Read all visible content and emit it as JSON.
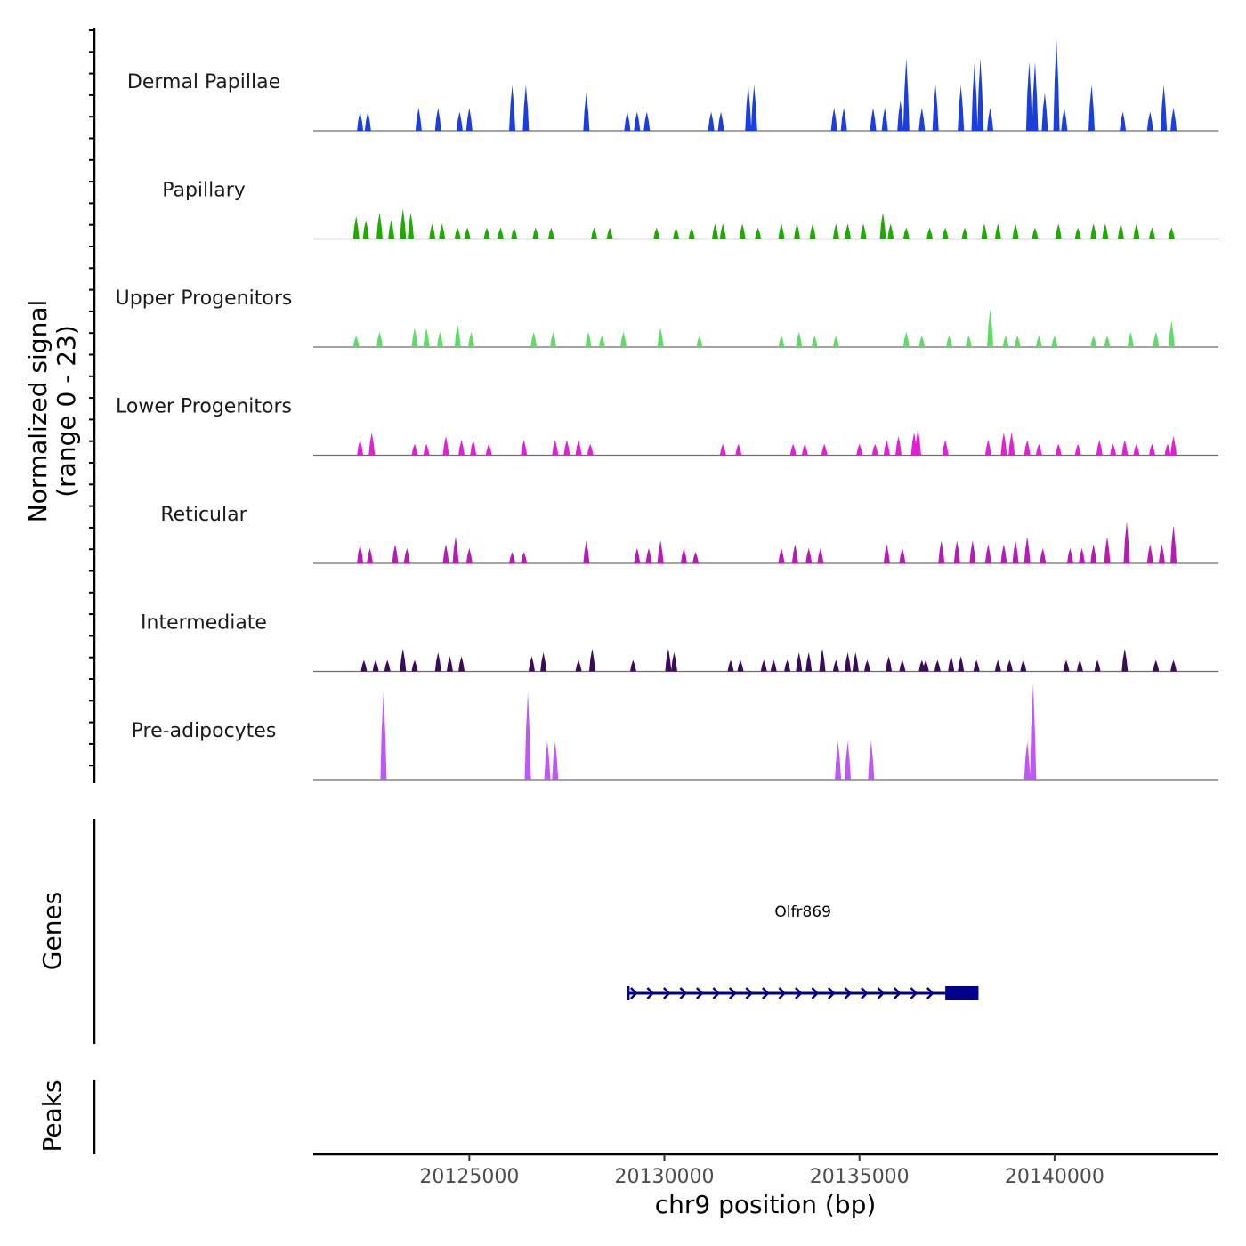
{
  "chart_data": {
    "type": "coverage",
    "y_axis_title": "Normalized signal",
    "y_axis_subtitle": "(range 0 - 23)",
    "y_range": [
      0,
      23
    ],
    "x_axis_title": "chr9 position (bp)",
    "x_ticks": [
      20125000,
      20130000,
      20135000,
      20140000
    ],
    "x_tick_labels": [
      "20125000",
      "20130000",
      "20135000",
      "20140000"
    ],
    "x_range": [
      20121000,
      20144200
    ],
    "tracks": [
      {
        "name": "Dermal Papillae",
        "color": "#1a3fe0",
        "peaks": [
          [
            20122200,
            5
          ],
          [
            20122400,
            5
          ],
          [
            20123700,
            6
          ],
          [
            20124200,
            6
          ],
          [
            20124750,
            5
          ],
          [
            20125000,
            6
          ],
          [
            20126100,
            12
          ],
          [
            20126450,
            12
          ],
          [
            20128000,
            10
          ],
          [
            20129050,
            5
          ],
          [
            20129300,
            5
          ],
          [
            20129550,
            5
          ],
          [
            20131200,
            5
          ],
          [
            20131450,
            5
          ],
          [
            20132150,
            12
          ],
          [
            20132300,
            12
          ],
          [
            20134350,
            6
          ],
          [
            20134600,
            6
          ],
          [
            20135350,
            6
          ],
          [
            20135650,
            6
          ],
          [
            20136050,
            8
          ],
          [
            20136200,
            19
          ],
          [
            20136600,
            6
          ],
          [
            20136950,
            12
          ],
          [
            20137600,
            12
          ],
          [
            20137950,
            18
          ],
          [
            20138100,
            19
          ],
          [
            20138350,
            6
          ],
          [
            20139350,
            18
          ],
          [
            20139500,
            18
          ],
          [
            20139750,
            10
          ],
          [
            20140050,
            24
          ],
          [
            20140250,
            6
          ],
          [
            20140950,
            12
          ],
          [
            20141750,
            5
          ],
          [
            20142450,
            5
          ],
          [
            20142800,
            12
          ],
          [
            20143050,
            6
          ]
        ]
      },
      {
        "name": "Papillary",
        "color": "#1faa00",
        "peaks": [
          [
            20122100,
            6
          ],
          [
            20122350,
            5
          ],
          [
            20122700,
            7
          ],
          [
            20123000,
            5
          ],
          [
            20123300,
            8
          ],
          [
            20123500,
            7
          ],
          [
            20124050,
            4
          ],
          [
            20124300,
            4
          ],
          [
            20124700,
            3
          ],
          [
            20124950,
            3
          ],
          [
            20125450,
            3
          ],
          [
            20125800,
            3
          ],
          [
            20126150,
            3
          ],
          [
            20126700,
            3
          ],
          [
            20127100,
            3
          ],
          [
            20128200,
            3
          ],
          [
            20128600,
            3
          ],
          [
            20129800,
            3
          ],
          [
            20130300,
            3
          ],
          [
            20130700,
            3
          ],
          [
            20131300,
            4
          ],
          [
            20131500,
            4
          ],
          [
            20132000,
            4
          ],
          [
            20132400,
            3
          ],
          [
            20133000,
            4
          ],
          [
            20133400,
            4
          ],
          [
            20133800,
            4
          ],
          [
            20134400,
            4
          ],
          [
            20134700,
            4
          ],
          [
            20135100,
            4
          ],
          [
            20135600,
            7
          ],
          [
            20135800,
            4
          ],
          [
            20136200,
            3
          ],
          [
            20136800,
            3
          ],
          [
            20137200,
            3
          ],
          [
            20137700,
            3
          ],
          [
            20138200,
            4
          ],
          [
            20138550,
            4
          ],
          [
            20139000,
            4
          ],
          [
            20139500,
            3
          ],
          [
            20140100,
            4
          ],
          [
            20140600,
            3
          ],
          [
            20141000,
            4
          ],
          [
            20141300,
            4
          ],
          [
            20141700,
            4
          ],
          [
            20142100,
            4
          ],
          [
            20142500,
            3
          ],
          [
            20143000,
            3
          ]
        ]
      },
      {
        "name": "Upper Progenitors",
        "color": "#5fdc66",
        "peaks": [
          [
            20122100,
            3
          ],
          [
            20122700,
            4
          ],
          [
            20123600,
            5
          ],
          [
            20123900,
            5
          ],
          [
            20124250,
            4
          ],
          [
            20124700,
            6
          ],
          [
            20125050,
            4
          ],
          [
            20126650,
            4
          ],
          [
            20127150,
            4
          ],
          [
            20128050,
            4
          ],
          [
            20128400,
            3
          ],
          [
            20128950,
            4
          ],
          [
            20129900,
            5
          ],
          [
            20130900,
            3
          ],
          [
            20133000,
            3
          ],
          [
            20133450,
            4
          ],
          [
            20133850,
            3
          ],
          [
            20134400,
            3
          ],
          [
            20136200,
            4
          ],
          [
            20136600,
            3
          ],
          [
            20137300,
            3
          ],
          [
            20137800,
            3
          ],
          [
            20138350,
            10
          ],
          [
            20138750,
            3
          ],
          [
            20139050,
            3
          ],
          [
            20139600,
            3
          ],
          [
            20140000,
            3
          ],
          [
            20141000,
            3
          ],
          [
            20141350,
            3
          ],
          [
            20141950,
            4
          ],
          [
            20142600,
            4
          ],
          [
            20143000,
            7
          ]
        ]
      },
      {
        "name": "Lower Progenitors",
        "color": "#e21fd4",
        "peaks": [
          [
            20122200,
            4
          ],
          [
            20122500,
            6
          ],
          [
            20123600,
            3
          ],
          [
            20123900,
            3
          ],
          [
            20124400,
            5
          ],
          [
            20124800,
            4
          ],
          [
            20125100,
            4
          ],
          [
            20125500,
            3
          ],
          [
            20126400,
            4
          ],
          [
            20127200,
            4
          ],
          [
            20127500,
            4
          ],
          [
            20127800,
            4
          ],
          [
            20128100,
            3
          ],
          [
            20131500,
            3
          ],
          [
            20131900,
            3
          ],
          [
            20133300,
            3
          ],
          [
            20133600,
            3
          ],
          [
            20134100,
            3
          ],
          [
            20135000,
            3
          ],
          [
            20135400,
            3
          ],
          [
            20135700,
            4
          ],
          [
            20136000,
            5
          ],
          [
            20136400,
            6
          ],
          [
            20136500,
            7
          ],
          [
            20137200,
            4
          ],
          [
            20138300,
            4
          ],
          [
            20138700,
            6
          ],
          [
            20138900,
            6
          ],
          [
            20139300,
            4
          ],
          [
            20139600,
            3
          ],
          [
            20140100,
            3
          ],
          [
            20140600,
            3
          ],
          [
            20141150,
            4
          ],
          [
            20141500,
            3
          ],
          [
            20141800,
            4
          ],
          [
            20142100,
            3
          ],
          [
            20142500,
            3
          ],
          [
            20142900,
            3
          ],
          [
            20143050,
            5
          ]
        ]
      },
      {
        "name": "Reticular",
        "color": "#b41cb4",
        "peaks": [
          [
            20122200,
            5
          ],
          [
            20122450,
            4
          ],
          [
            20123100,
            5
          ],
          [
            20123400,
            4
          ],
          [
            20124400,
            5
          ],
          [
            20124650,
            7
          ],
          [
            20125000,
            4
          ],
          [
            20126100,
            3
          ],
          [
            20126400,
            3
          ],
          [
            20128000,
            6
          ],
          [
            20129300,
            4
          ],
          [
            20129600,
            4
          ],
          [
            20129900,
            6
          ],
          [
            20130500,
            4
          ],
          [
            20130800,
            3
          ],
          [
            20133000,
            4
          ],
          [
            20133350,
            5
          ],
          [
            20133700,
            4
          ],
          [
            20134000,
            4
          ],
          [
            20135700,
            5
          ],
          [
            20136100,
            4
          ],
          [
            20137100,
            6
          ],
          [
            20137500,
            6
          ],
          [
            20137900,
            6
          ],
          [
            20138300,
            5
          ],
          [
            20138700,
            5
          ],
          [
            20139000,
            6
          ],
          [
            20139300,
            7
          ],
          [
            20139700,
            4
          ],
          [
            20140400,
            4
          ],
          [
            20140700,
            4
          ],
          [
            20141000,
            5
          ],
          [
            20141350,
            7
          ],
          [
            20141850,
            11
          ],
          [
            20142450,
            5
          ],
          [
            20142750,
            5
          ],
          [
            20143050,
            10
          ]
        ]
      },
      {
        "name": "Intermediate",
        "color": "#3b0a5c",
        "peaks": [
          [
            20122300,
            3
          ],
          [
            20122600,
            3
          ],
          [
            20122900,
            3
          ],
          [
            20123300,
            6
          ],
          [
            20123600,
            3
          ],
          [
            20124200,
            5
          ],
          [
            20124500,
            4
          ],
          [
            20124800,
            4
          ],
          [
            20126600,
            4
          ],
          [
            20126900,
            5
          ],
          [
            20127800,
            3
          ],
          [
            20128150,
            6
          ],
          [
            20129200,
            3
          ],
          [
            20130100,
            6
          ],
          [
            20130250,
            5
          ],
          [
            20131700,
            3
          ],
          [
            20131950,
            3
          ],
          [
            20132550,
            3
          ],
          [
            20132800,
            3
          ],
          [
            20133150,
            3
          ],
          [
            20133450,
            5
          ],
          [
            20133700,
            5
          ],
          [
            20134050,
            6
          ],
          [
            20134400,
            3
          ],
          [
            20134700,
            5
          ],
          [
            20134900,
            5
          ],
          [
            20135200,
            3
          ],
          [
            20135750,
            4
          ],
          [
            20136100,
            3
          ],
          [
            20136600,
            3
          ],
          [
            20136700,
            3
          ],
          [
            20137000,
            3
          ],
          [
            20137350,
            4
          ],
          [
            20137600,
            4
          ],
          [
            20138000,
            3
          ],
          [
            20138550,
            3
          ],
          [
            20138850,
            3
          ],
          [
            20139200,
            3
          ],
          [
            20140300,
            3
          ],
          [
            20140650,
            3
          ],
          [
            20141100,
            3
          ],
          [
            20141800,
            6
          ],
          [
            20142600,
            3
          ],
          [
            20143050,
            3
          ]
        ]
      },
      {
        "name": "Pre-adipocytes",
        "color": "#bc59f5",
        "peaks": [
          [
            20122800,
            23
          ],
          [
            20126500,
            23
          ],
          [
            20127000,
            10
          ],
          [
            20127200,
            10
          ],
          [
            20134450,
            10
          ],
          [
            20134700,
            10
          ],
          [
            20135300,
            10
          ],
          [
            20139300,
            10
          ],
          [
            20139450,
            25
          ]
        ]
      }
    ],
    "genes_track_title": "Genes",
    "peaks_track_title": "Peaks",
    "genes": [
      {
        "name": "Olfr869",
        "start": 20129050,
        "end": 20138050,
        "cds_start": 20137200,
        "cds_end": 20138050,
        "strand": "+",
        "color": "#00008b"
      }
    ]
  }
}
